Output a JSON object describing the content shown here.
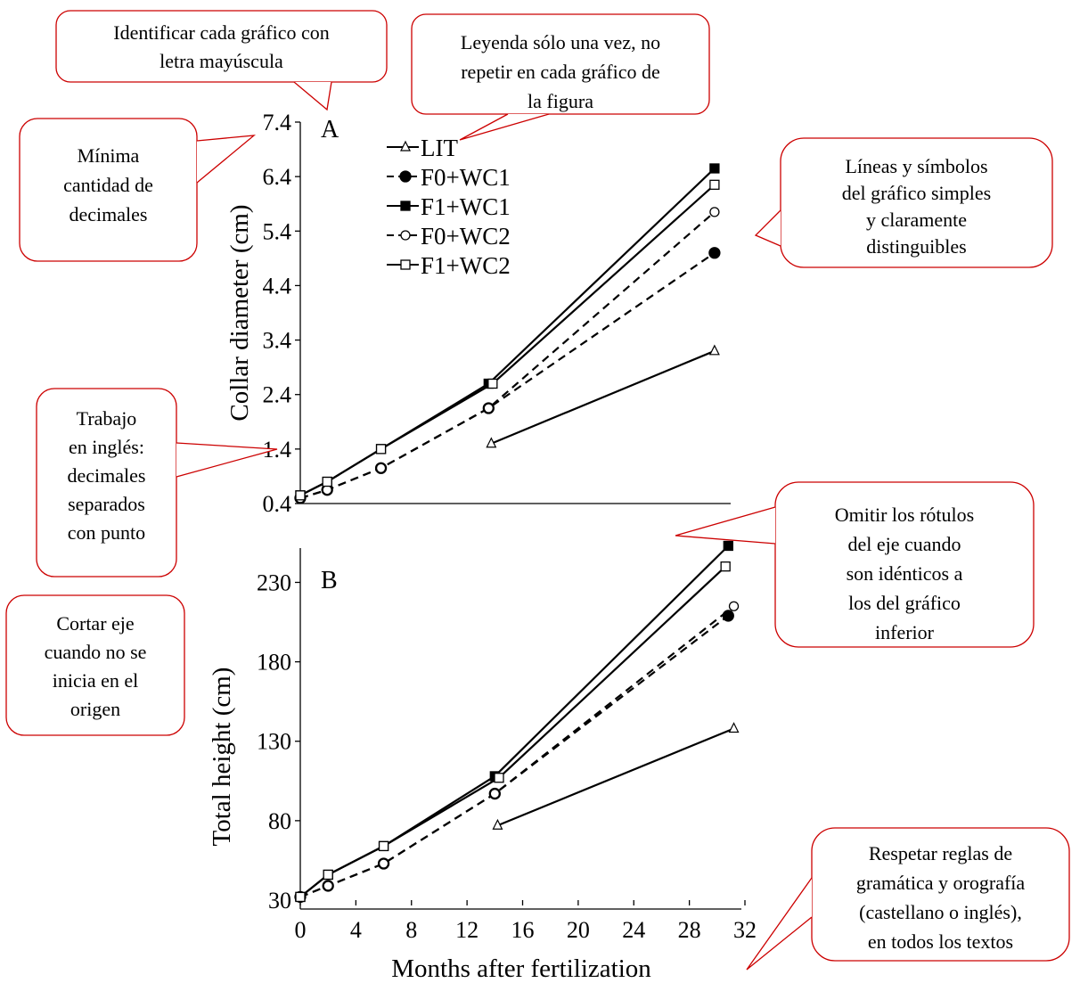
{
  "chart_data": [
    {
      "type": "line",
      "panel_label": "A",
      "ylabel": "Collar diameter (cm)",
      "xlabel": "",
      "xlim": [
        0,
        32
      ],
      "ylim": [
        0.4,
        7.4
      ],
      "yticks": [
        "0.4",
        "1.4",
        "2.4",
        "3.4",
        "4.4",
        "5.4",
        "6.4",
        "7.4"
      ],
      "legend_position": "top-left",
      "series": [
        {
          "name": "LIT",
          "x": [
            14.2,
            30.8
          ],
          "values": [
            1.5,
            3.2
          ]
        },
        {
          "name": "F0+WC1",
          "x": [
            0,
            2,
            6,
            14,
            30.8
          ],
          "values": [
            0.5,
            0.65,
            1.05,
            2.15,
            5.0
          ]
        },
        {
          "name": "F1+WC1",
          "x": [
            0,
            2,
            6,
            14,
            30.8
          ],
          "values": [
            0.55,
            0.8,
            1.4,
            2.6,
            6.55
          ]
        },
        {
          "name": "F0+WC2",
          "x": [
            0,
            2,
            6,
            14,
            30.8
          ],
          "values": [
            0.5,
            0.65,
            1.05,
            2.15,
            5.75
          ]
        },
        {
          "name": "F1+WC2",
          "x": [
            0,
            2,
            6,
            14.3,
            30.8
          ],
          "values": [
            0.55,
            0.8,
            1.4,
            2.6,
            6.25
          ]
        }
      ]
    },
    {
      "type": "line",
      "panel_label": "B",
      "ylabel": "Total height (cm)",
      "xlabel": "Months after fertilization",
      "xlim": [
        0,
        32
      ],
      "ylim": [
        30,
        260
      ],
      "xticks": [
        "0",
        "4",
        "8",
        "12",
        "16",
        "20",
        "24",
        "28",
        "32"
      ],
      "yticks": [
        "30",
        "80",
        "130",
        "180",
        "230"
      ],
      "series": [
        {
          "name": "LIT",
          "x": [
            14.2,
            31.2
          ],
          "values": [
            77,
            138
          ]
        },
        {
          "name": "F0+WC1",
          "x": [
            0,
            2,
            6,
            14,
            30.8
          ],
          "values": [
            32,
            39,
            53,
            97,
            209
          ]
        },
        {
          "name": "F1+WC1",
          "x": [
            0,
            2,
            6,
            14,
            30.8
          ],
          "values": [
            32,
            46,
            64,
            108,
            253
          ]
        },
        {
          "name": "F0+WC2",
          "x": [
            0,
            2,
            6,
            14,
            31.2
          ],
          "values": [
            32,
            39,
            53,
            97,
            215
          ]
        },
        {
          "name": "F1+WC2",
          "x": [
            0,
            2,
            6,
            14.3,
            30.6
          ],
          "values": [
            32,
            46,
            64,
            107,
            240
          ]
        }
      ]
    }
  ],
  "legend": [
    "LIT",
    "F0+WC1",
    "F1+WC1",
    "F0+WC2",
    "F1+WC2"
  ],
  "callouts": [
    {
      "id": "identificar",
      "lines": [
        "Identificar cada gráfico con",
        "letra mayúscula"
      ]
    },
    {
      "id": "leyenda",
      "lines": [
        "Leyenda sólo una vez, no",
        "repetir en cada gráfico de",
        "la figura"
      ]
    },
    {
      "id": "decimales",
      "lines": [
        "Mínima",
        "cantidad de",
        "decimales"
      ]
    },
    {
      "id": "lineas",
      "lines": [
        "Líneas y símbolos",
        "del gráfico simples",
        "y claramente",
        "distinguibles"
      ]
    },
    {
      "id": "ingles",
      "lines": [
        "Trabajo",
        "en inglés:",
        "decimales",
        "separados",
        "con punto"
      ]
    },
    {
      "id": "omitir",
      "lines": [
        "Omitir los rótulos",
        "del eje cuando",
        "son idénticos a",
        "los del gráfico",
        "inferior"
      ]
    },
    {
      "id": "cortar",
      "lines": [
        "Cortar eje",
        "cuando no se",
        "inicia en el",
        "origen"
      ]
    },
    {
      "id": "respetar",
      "lines": [
        "Respetar reglas de",
        "gramática y orografía",
        "(castellano o inglés),",
        "en todos los textos"
      ]
    }
  ],
  "colors": {
    "callout_border": "#cc0000",
    "ink": "#000000"
  }
}
